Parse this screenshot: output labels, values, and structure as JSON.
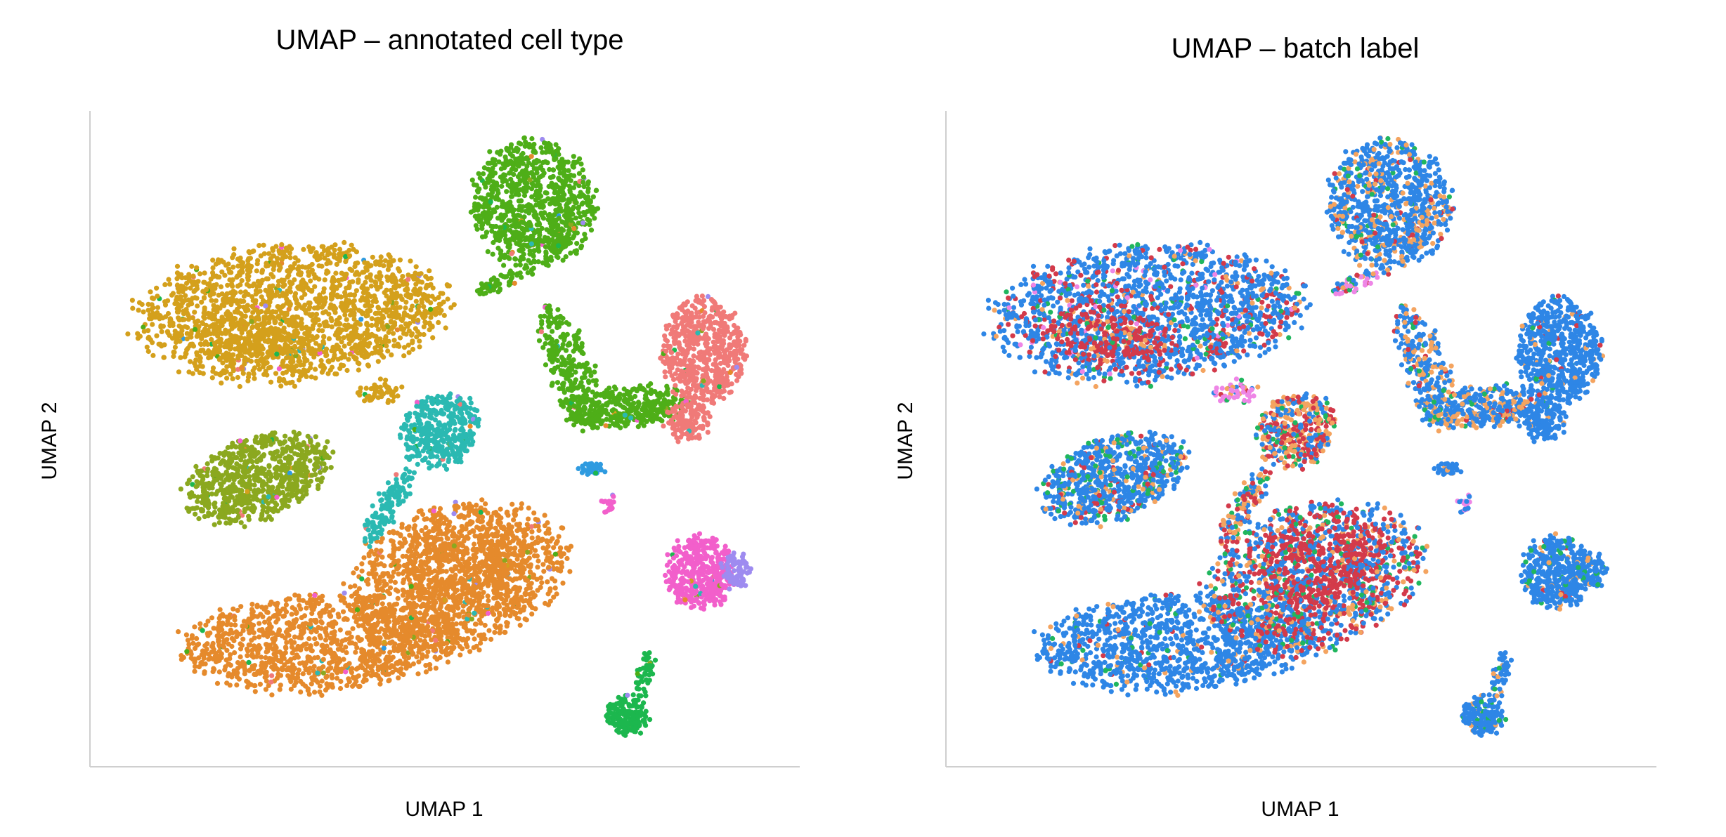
{
  "chart_data": [
    {
      "type": "scatter",
      "title": "UMAP – annotated cell type",
      "xlabel": "UMAP 1",
      "ylabel": "UMAP 2",
      "grid": false,
      "legend": "none",
      "colors": [
        "#D4A01C",
        "#8BA81F",
        "#E58A2C",
        "#2BB9B2",
        "#4EAE18",
        "#F07A78",
        "#2F9BE0",
        "#F25FCB",
        "#9E8BF0",
        "#1CB74E"
      ]
    },
    {
      "type": "scatter",
      "title": "UMAP – batch label",
      "xlabel": "UMAP 1",
      "ylabel": "UMAP 2",
      "grid": false,
      "legend": "none",
      "colors": [
        "#2E86E6",
        "#F4A460",
        "#D33A4A",
        "#20B65E",
        "#EE86E6"
      ]
    }
  ]
}
